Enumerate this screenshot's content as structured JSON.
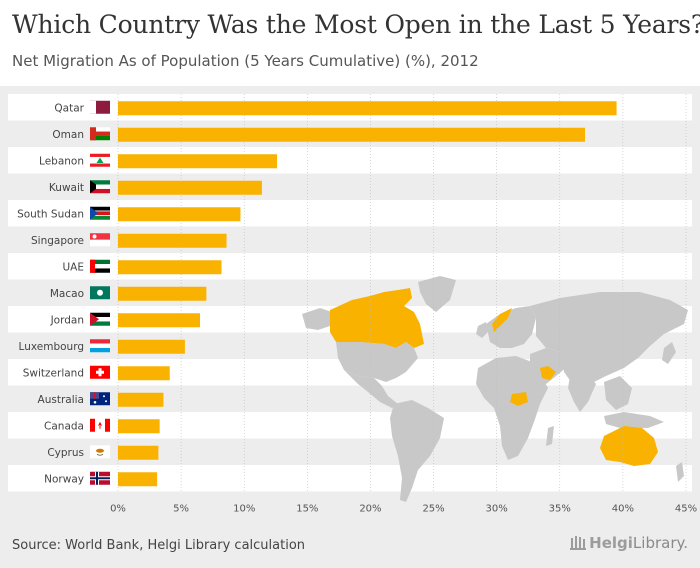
{
  "header": {
    "title": "Which Country Was the Most Open in the Last 5 Years?",
    "subtitle": "Net Migration As of Population (5 Years Cumulative) (%), 2012"
  },
  "footer": {
    "source": "Source: World Bank, Helgi Library calculation",
    "brand_part1": "Helgi",
    "brand_part2": "Library."
  },
  "colors": {
    "bar": "#f9b200",
    "band": "#ffffff",
    "grid": "#bdbdbd",
    "map_land": "#c8c8c8",
    "map_highlight": "#f9b200"
  },
  "chart_data": {
    "type": "bar",
    "orientation": "horizontal",
    "title": "Which Country Was the Most Open in the Last 5 Years?",
    "subtitle": "Net Migration As of Population (5 Years Cumulative) (%), 2012",
    "categories": [
      "Qatar",
      "Oman",
      "Lebanon",
      "Kuwait",
      "South Sudan",
      "Singapore",
      "UAE",
      "Macao",
      "Jordan",
      "Luxembourg",
      "Switzerland",
      "Australia",
      "Canada",
      "Cyprus",
      "Norway"
    ],
    "values": [
      39.5,
      37.0,
      12.6,
      11.4,
      9.7,
      8.6,
      8.2,
      7.0,
      6.5,
      5.3,
      4.1,
      3.6,
      3.3,
      3.2,
      3.1
    ],
    "flags": [
      "flag-qatar",
      "flag-oman",
      "flag-lebanon",
      "flag-kuwait",
      "flag-south-sudan",
      "flag-singapore",
      "flag-uae",
      "flag-macao",
      "flag-jordan",
      "flag-luxembourg",
      "flag-switzerland",
      "flag-australia",
      "flag-canada",
      "flag-cyprus",
      "flag-norway"
    ],
    "xlim": [
      0,
      45
    ],
    "xticks": [
      0,
      5,
      10,
      15,
      20,
      25,
      30,
      35,
      40,
      45
    ],
    "xtick_labels": [
      "0%",
      "5%",
      "10%",
      "15%",
      "20%",
      "25%",
      "30%",
      "35%",
      "40%",
      "45%"
    ],
    "xlabel": "",
    "ylabel": "",
    "grid": true,
    "background": "world-map"
  }
}
